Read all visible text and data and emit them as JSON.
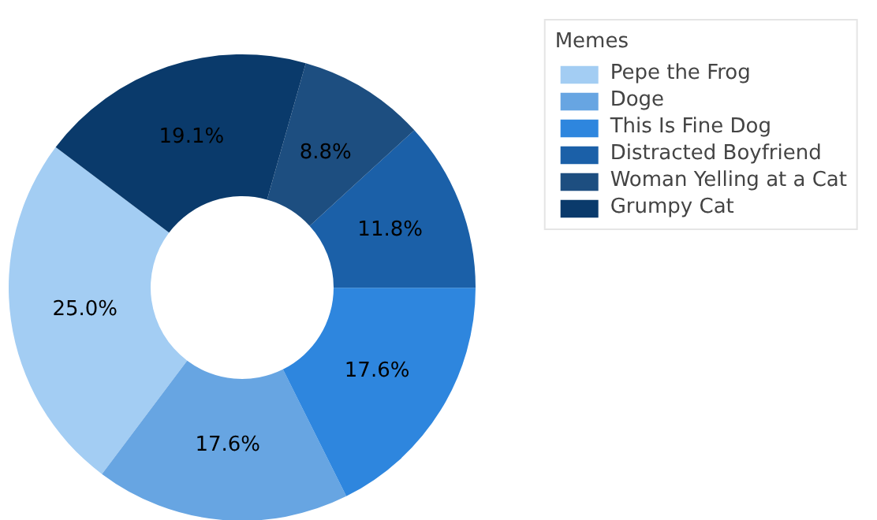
{
  "chart_data": {
    "type": "donut",
    "legend_title": "Memes",
    "categories": [
      "Pepe the Frog",
      "Doge",
      "This Is Fine Dog",
      "Distracted Boyfriend",
      "Woman Yelling at a Cat",
      "Grumpy Cat"
    ],
    "values": [
      25.0,
      17.6,
      17.6,
      11.8,
      8.8,
      19.1
    ],
    "colors": [
      "#a3cdf3",
      "#67a5e2",
      "#2e86de",
      "#1b60a8",
      "#1d4e80",
      "#0a3a6b"
    ],
    "value_labels": [
      "25.0%",
      "17.6%",
      "17.6%",
      "11.8%",
      "8.8%",
      "19.1%"
    ],
    "legend": "top right"
  }
}
